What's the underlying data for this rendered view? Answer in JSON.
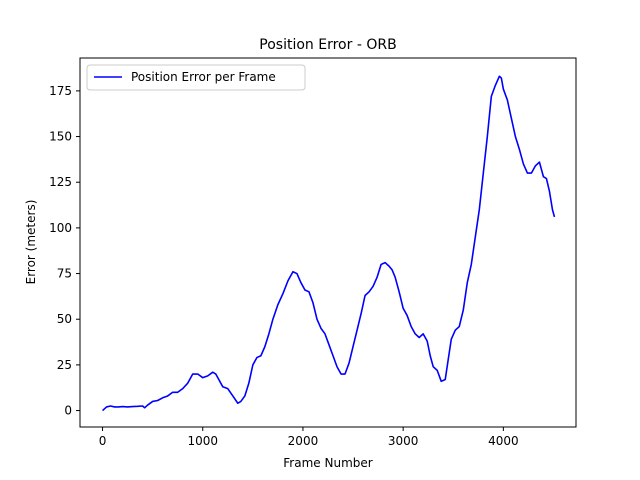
{
  "chart_data": {
    "type": "line",
    "title": "Position Error - ORB",
    "xlabel": "Frame Number",
    "ylabel": "Error (meters)",
    "xlim": [
      -225,
      4725
    ],
    "ylim": [
      -9,
      193
    ],
    "xticks": [
      0,
      1000,
      2000,
      3000,
      4000
    ],
    "yticks": [
      0,
      25,
      50,
      75,
      100,
      125,
      150,
      175
    ],
    "grid": false,
    "legend_position": "top-left",
    "colors": {
      "line": "#0000ff",
      "axes": "#000000",
      "background": "#ffffff"
    },
    "series": [
      {
        "name": "Position Error per Frame",
        "x": [
          0,
          40,
          80,
          120,
          160,
          200,
          250,
          300,
          350,
          400,
          420,
          450,
          500,
          550,
          600,
          650,
          700,
          750,
          800,
          850,
          900,
          950,
          1000,
          1050,
          1100,
          1130,
          1160,
          1200,
          1250,
          1300,
          1350,
          1380,
          1420,
          1460,
          1500,
          1540,
          1580,
          1620,
          1660,
          1700,
          1750,
          1800,
          1850,
          1900,
          1940,
          1980,
          2020,
          2060,
          2100,
          2140,
          2180,
          2220,
          2260,
          2300,
          2340,
          2380,
          2420,
          2460,
          2500,
          2540,
          2580,
          2620,
          2660,
          2700,
          2740,
          2780,
          2820,
          2860,
          2890,
          2920,
          2960,
          3000,
          3040,
          3080,
          3120,
          3160,
          3200,
          3240,
          3270,
          3300,
          3340,
          3380,
          3420,
          3450,
          3480,
          3520,
          3560,
          3600,
          3640,
          3680,
          3720,
          3760,
          3800,
          3840,
          3880,
          3920,
          3960,
          3980,
          4000,
          4040,
          4080,
          4120,
          4160,
          4200,
          4240,
          4280,
          4320,
          4360,
          4380,
          4400,
          4430,
          4460,
          4490,
          4510
        ],
        "y": [
          0,
          2,
          2.5,
          2,
          2,
          2.2,
          2,
          2.2,
          2.3,
          2.5,
          1.5,
          3,
          5,
          5.5,
          7,
          8,
          10,
          10,
          12,
          15,
          20,
          20,
          18,
          19,
          21,
          20,
          17,
          13,
          12,
          8,
          4,
          5,
          8,
          15,
          25,
          29,
          30,
          35,
          42,
          50,
          58,
          64,
          71,
          76,
          75,
          70,
          66,
          65,
          59,
          50,
          45,
          42,
          36,
          30,
          24,
          20,
          20,
          26,
          35,
          44,
          53,
          63,
          65,
          68,
          73,
          80,
          81,
          79,
          77,
          73,
          65,
          56,
          52,
          46,
          42,
          40,
          42,
          38,
          30,
          24,
          22,
          16,
          17,
          28,
          39,
          44,
          46,
          55,
          70,
          80,
          95,
          110,
          130,
          150,
          172,
          178,
          183,
          182,
          176,
          170,
          160,
          150,
          143,
          135,
          130,
          130,
          134,
          136,
          132,
          128,
          127,
          120,
          110,
          106
        ]
      }
    ]
  }
}
